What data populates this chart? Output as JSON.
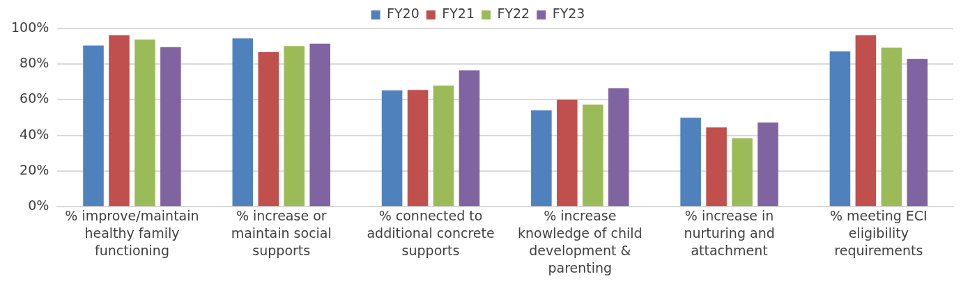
{
  "chart_data": {
    "type": "bar",
    "categories": [
      "% improve/maintain healthy family functioning",
      "% increase or maintain social supports",
      "% connected to additional concrete supports",
      "% increase knowledge of child development & parenting",
      "% increase in nurturing and attachment",
      "% meeting ECI eligibility requirements"
    ],
    "series": [
      {
        "name": "FY20",
        "color": "#4f81bd",
        "values": [
          90.4,
          94.4,
          65.3,
          54.1,
          49.9,
          87.2
        ]
      },
      {
        "name": "FY21",
        "color": "#c0504d",
        "values": [
          96.3,
          86.7,
          65.6,
          60,
          44.5,
          96.3
        ]
      },
      {
        "name": "FY22",
        "color": "#9bbb59",
        "values": [
          93.9,
          90.1,
          68,
          57.3,
          38.4,
          89.3
        ]
      },
      {
        "name": "FY23",
        "color": "#8064a2",
        "values": [
          89.6,
          91.5,
          76.5,
          66.4,
          47.2,
          82.9
        ]
      }
    ],
    "ylim": [
      0,
      100
    ],
    "yticks": [
      {
        "value": 0,
        "label": "0%"
      },
      {
        "value": 20,
        "label": "20%"
      },
      {
        "value": 40,
        "label": "40%"
      },
      {
        "value": 60,
        "label": "60%"
      },
      {
        "value": 80,
        "label": "80%"
      },
      {
        "value": 100,
        "label": "100%"
      }
    ],
    "grid": "y",
    "legend": "top"
  }
}
